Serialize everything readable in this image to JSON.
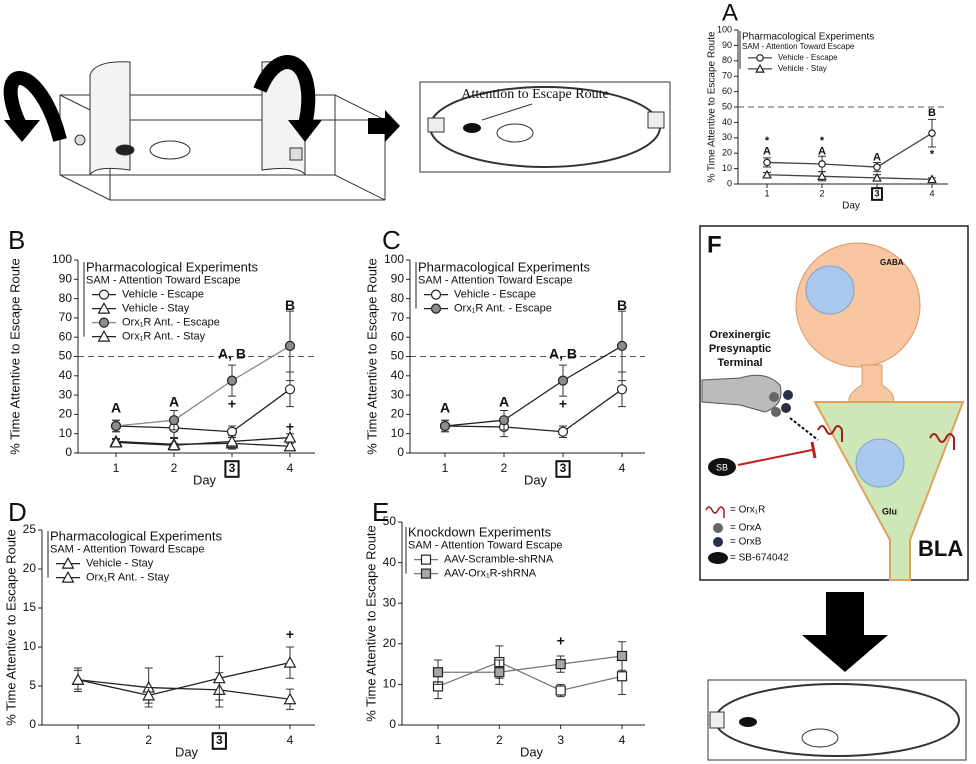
{
  "chart_data": [
    {
      "type": "line",
      "label": "A",
      "title": "Pharmacological Experiments",
      "subtitle": "SAM - Attention Toward Escape",
      "x_label": "Day",
      "y_label": "% Time Attentive to Escape Route",
      "categories": [
        "1",
        "2",
        "3",
        "4"
      ],
      "boxed_category": 2,
      "ylim": [
        0,
        100
      ],
      "yticks": [
        0,
        10,
        20,
        30,
        40,
        50,
        60,
        70,
        80,
        90,
        100
      ],
      "reference_line": 50,
      "series": [
        {
          "name": "Vehicle - Escape",
          "color": "#444",
          "marker": "circle",
          "marker_fill": "#ffffff",
          "values": [
            14,
            13,
            11,
            33
          ],
          "errors": [
            3,
            5,
            3,
            9
          ]
        },
        {
          "name": "Vehicle - Stay",
          "color": "#444",
          "marker": "triangle",
          "marker_fill": "#ffffff",
          "values": [
            6,
            5,
            4,
            3
          ],
          "errors": [
            1.5,
            3,
            2,
            1
          ]
        }
      ],
      "annotations": [
        "*",
        "A",
        "*",
        "A",
        "A",
        "B",
        "*"
      ]
    },
    {
      "type": "line",
      "label": "B",
      "title": "Pharmacological Experiments",
      "subtitle": "SAM - Attention Toward Escape",
      "x_label": "Day",
      "y_label": "% Time Attentive to Escape Route",
      "categories": [
        "1",
        "2",
        "3",
        "4"
      ],
      "boxed_category": 2,
      "ylim": [
        0,
        100
      ],
      "yticks": [
        0,
        10,
        20,
        30,
        40,
        50,
        60,
        70,
        80,
        90,
        100
      ],
      "reference_line": 50,
      "series": [
        {
          "name": "Vehicle - Escape",
          "color": "#222",
          "marker": "circle",
          "marker_fill": "#ffffff",
          "values": [
            14,
            13,
            11,
            33
          ],
          "errors": [
            3,
            5,
            3,
            9
          ]
        },
        {
          "name": "Vehicle - Stay",
          "color": "#222",
          "marker": "triangle",
          "marker_fill": "#ffffff",
          "values": [
            6,
            4.5,
            5,
            3.5
          ],
          "errors": [
            1.5,
            3,
            3,
            1.5
          ]
        },
        {
          "name": "Orx₁R Ant. - Escape",
          "color": "#888",
          "marker": "circle",
          "marker_fill": "#8c8c8c",
          "values": [
            14,
            17,
            37.5,
            55.5
          ],
          "errors": [
            3,
            5,
            8,
            18
          ]
        },
        {
          "name": "Orx₁R Ant. - Stay",
          "color": "#222",
          "marker": "triangle",
          "marker_fill": "#ffffff",
          "values": [
            5.5,
            4,
            6,
            8
          ],
          "errors": [
            1.5,
            1,
            3,
            2
          ]
        }
      ],
      "annotations": [
        "A",
        "A",
        "A, B",
        "B",
        "+",
        "+"
      ]
    },
    {
      "type": "line",
      "label": "C",
      "title": "Pharmacological Experiments",
      "subtitle": "SAM - Attention Toward Escape",
      "x_label": "Day",
      "y_label": "% Time Attentive to Escape Route",
      "categories": [
        "1",
        "2",
        "3",
        "4"
      ],
      "boxed_category": 2,
      "ylim": [
        0,
        100
      ],
      "yticks": [
        0,
        10,
        20,
        30,
        40,
        50,
        60,
        70,
        80,
        90,
        100
      ],
      "reference_line": 50,
      "series": [
        {
          "name": "Vehicle - Escape",
          "color": "#222",
          "marker": "circle",
          "marker_fill": "#ffffff",
          "values": [
            14,
            13.5,
            11,
            33
          ],
          "errors": [
            3,
            5,
            3,
            9
          ]
        },
        {
          "name": "Orx₁R Ant. - Escape",
          "color": "#222",
          "marker": "circle",
          "marker_fill": "#8c8c8c",
          "values": [
            14,
            17,
            37.5,
            55.5
          ],
          "errors": [
            3,
            5,
            8,
            18
          ]
        }
      ],
      "annotations": [
        "A",
        "A",
        "A, B",
        "B",
        "+"
      ]
    },
    {
      "type": "line",
      "label": "D",
      "title": "Pharmacological Experiments",
      "subtitle": "SAM - Attention Toward Escape",
      "x_label": "Day",
      "y_label": "% Time Attentive to Escape Route",
      "categories": [
        "1",
        "2",
        "3",
        "4"
      ],
      "boxed_category": 2,
      "ylim": [
        0,
        25
      ],
      "yticks": [
        0,
        5,
        10,
        15,
        20,
        25
      ],
      "series": [
        {
          "name": "Vehicle - Stay",
          "color": "#222",
          "marker": "triangle",
          "marker_fill": "#ffffff",
          "values": [
            5.8,
            4.8,
            4.5,
            3.3
          ],
          "errors": [
            1.2,
            2.5,
            2.2,
            1.3
          ]
        },
        {
          "name": "Orx₁R Ant. - Stay",
          "color": "#222",
          "marker": "triangle",
          "marker_fill": "#ffffff",
          "values": [
            5.8,
            3.8,
            6,
            8
          ],
          "errors": [
            1.5,
            1,
            2.8,
            2
          ]
        }
      ],
      "annotations": [
        "+"
      ]
    },
    {
      "type": "line",
      "label": "E",
      "title": "Knockdown Experiments",
      "subtitle": "SAM - Attention Toward Escape",
      "x_label": "Day",
      "y_label": "% Time Attentive to Escape Route",
      "categories": [
        "1",
        "2",
        "3",
        "4"
      ],
      "ylim": [
        0,
        50
      ],
      "yticks": [
        0,
        10,
        20,
        30,
        40,
        50
      ],
      "series": [
        {
          "name": "AAV-Scramble-shRNA",
          "color": "#777",
          "marker": "square",
          "marker_fill": "#ffffff",
          "values": [
            9.5,
            15.5,
            8.5,
            12
          ],
          "errors": [
            3,
            4,
            1.5,
            4.5
          ]
        },
        {
          "name": "AAV-Orx₁R-shRNA",
          "color": "#777",
          "marker": "square",
          "marker_fill": "#a6a6a6",
          "values": [
            13,
            13,
            15,
            17
          ],
          "errors": [
            3,
            3,
            2,
            3.5
          ]
        }
      ],
      "annotations": [
        "+"
      ]
    }
  ],
  "apparatus": {
    "callout": "Attention to Escape Route"
  },
  "diagram": {
    "label": "F",
    "gaba": "GABA",
    "terminal": [
      "Orexinergic",
      "Presynaptic",
      "Terminal"
    ],
    "glu": "Glu",
    "region": "BLA",
    "antagonist": "SB",
    "legend": [
      "= Orx₁R",
      "= OrxA",
      "= OrxB",
      "= SB-674042"
    ]
  }
}
